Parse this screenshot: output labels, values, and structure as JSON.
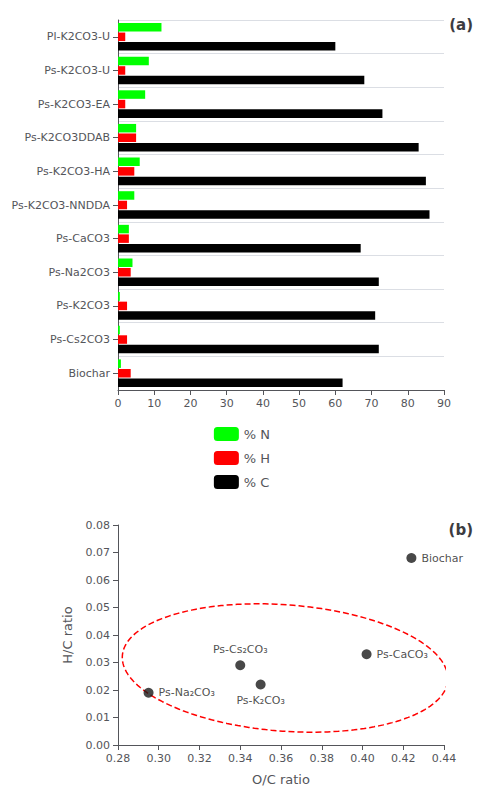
{
  "chart_data": [
    {
      "type": "bar",
      "orientation": "horizontal",
      "title": "(a)",
      "categories": [
        "Pl-K2CO3-U",
        "Ps-K2CO3-U",
        "Ps-K2CO3-EA",
        "Ps-K2CO3DDAB",
        "Ps-K2CO3-HA",
        "Ps-K2CO3-NNDDA",
        "Ps-CaCO3",
        "Ps-Na2CO3",
        "Ps-K2CO3",
        "Ps-Cs2CO3",
        "Biochar"
      ],
      "series": [
        {
          "name": "% N",
          "color": "#00ff00",
          "values": [
            12.0,
            8.5,
            7.5,
            5.0,
            6.0,
            4.5,
            3.0,
            4.0,
            0.5,
            0.5,
            0.8
          ]
        },
        {
          "name": "% H",
          "color": "#ff0000",
          "values": [
            2.0,
            2.0,
            2.0,
            5.0,
            4.5,
            2.5,
            3.0,
            3.5,
            2.5,
            2.5,
            3.5
          ]
        },
        {
          "name": "% C",
          "color": "#000000",
          "values": [
            60.0,
            68.0,
            73.0,
            83.0,
            85.0,
            86.0,
            67.0,
            72.0,
            71.0,
            72.0,
            62.0
          ]
        }
      ],
      "xlim": [
        0,
        90
      ],
      "xticks": [
        0,
        10,
        20,
        30,
        40,
        50,
        60,
        70,
        80,
        90
      ],
      "grid": true,
      "legend": "bottom"
    },
    {
      "type": "scatter",
      "title": "(b)",
      "x": [
        0.424,
        0.34,
        0.295,
        0.35,
        0.402
      ],
      "values": [
        0.068,
        0.029,
        0.019,
        0.022,
        0.033
      ],
      "labels": [
        "Biochar",
        "Ps-Cs₂CO₃",
        "Ps-Na₂CO₃",
        "Ps-K₂CO₃",
        "Ps-CaCO₃"
      ],
      "color": "#1a1a1a",
      "xlabel": "O/C ratio",
      "ylabel": "H/C ratio",
      "xlim": [
        0.28,
        0.44
      ],
      "ylim": [
        0.0,
        0.08
      ],
      "xticks": [
        0.28,
        {
          "value": 0.3,
          "label": "0.30"
        },
        0.32,
        0.34,
        0.36,
        0.38,
        {
          "value": 0.4,
          "label": "0.40"
        },
        0.42,
        0.44
      ],
      "yticks": [
        {
          "value": 0.0,
          "label": "0.00"
        },
        0.01,
        0.02,
        0.03,
        0.04,
        0.05,
        0.06,
        0.07,
        0.08
      ],
      "grid": false,
      "ellipse": {
        "x": 0.362,
        "y": 0.028,
        "width": 0.16,
        "height": 0.046,
        "angle": -3,
        "color": "#ff0000",
        "line_style": "dashed"
      }
    }
  ]
}
